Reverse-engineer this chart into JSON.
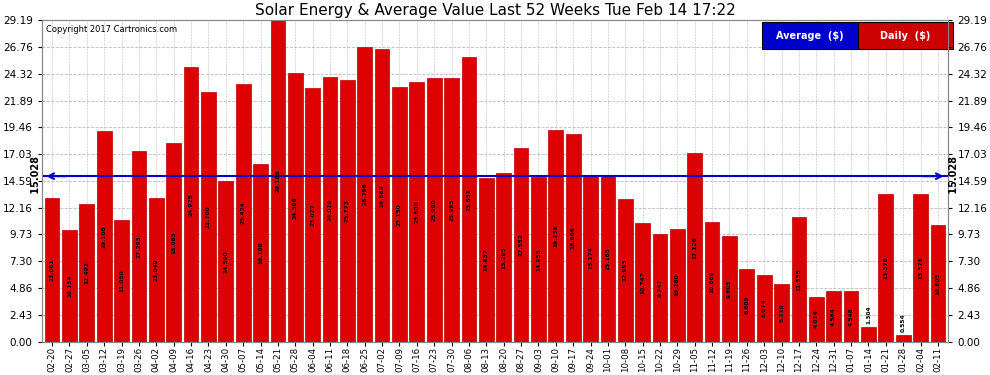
{
  "title": "Solar Energy & Average Value Last 52 Weeks Tue Feb 14 17:22",
  "copyright": "Copyright 2017 Cartronics.com",
  "average_line": 15.028,
  "ylim": [
    0,
    29.19
  ],
  "yticks": [
    0.0,
    2.43,
    4.86,
    7.3,
    9.73,
    12.16,
    14.59,
    17.03,
    19.46,
    21.89,
    24.32,
    26.76,
    29.19
  ],
  "bar_color": "#DD0000",
  "bar_edge_color": "#BB0000",
  "average_line_color": "#0000CC",
  "background_color": "#FFFFFF",
  "plot_bg_color": "#FFFFFF",
  "grid_color": "#BBBBBB",
  "labels": [
    "02-20",
    "02-27",
    "03-05",
    "03-12",
    "03-19",
    "03-26",
    "04-02",
    "04-09",
    "04-16",
    "04-23",
    "04-30",
    "05-07",
    "05-14",
    "05-21",
    "05-28",
    "06-04",
    "06-11",
    "06-18",
    "06-25",
    "07-02",
    "07-09",
    "07-16",
    "07-23",
    "07-30",
    "08-06",
    "08-13",
    "08-20",
    "08-27",
    "09-03",
    "09-10",
    "09-17",
    "09-24",
    "10-01",
    "10-08",
    "10-15",
    "10-22",
    "10-29",
    "11-05",
    "11-12",
    "11-19",
    "11-26",
    "12-03",
    "12-10",
    "12-17",
    "12-24",
    "12-31",
    "01-07",
    "01-14",
    "01-21",
    "01-28",
    "02-04",
    "02-11"
  ],
  "values": [
    13.081,
    10.154,
    12.492,
    19.108,
    11.05,
    17.293,
    13.049,
    18.065,
    24.925,
    22.7,
    14.59,
    23.424,
    16.108,
    29.188,
    24.396,
    23.027,
    24.019,
    23.773,
    26.796,
    26.569,
    23.15,
    23.6,
    23.98,
    23.985,
    25.831,
    14.837,
    15.295,
    17.552,
    14.955,
    19.236,
    18.866,
    15.174,
    15.163,
    12.993,
    10.747,
    9.747,
    10.26,
    17.126,
    10.869,
    9.605,
    6.609,
    6.074,
    5.21,
    11.335,
    4.074,
    4.564,
    4.548,
    1.304,
    13.376,
    0.554,
    13.376,
    10.605
  ],
  "legend_avg_color": "#0000CC",
  "legend_daily_color": "#CC0000",
  "legend_avg_label": "Average  ($)",
  "legend_daily_label": "Daily  ($)"
}
